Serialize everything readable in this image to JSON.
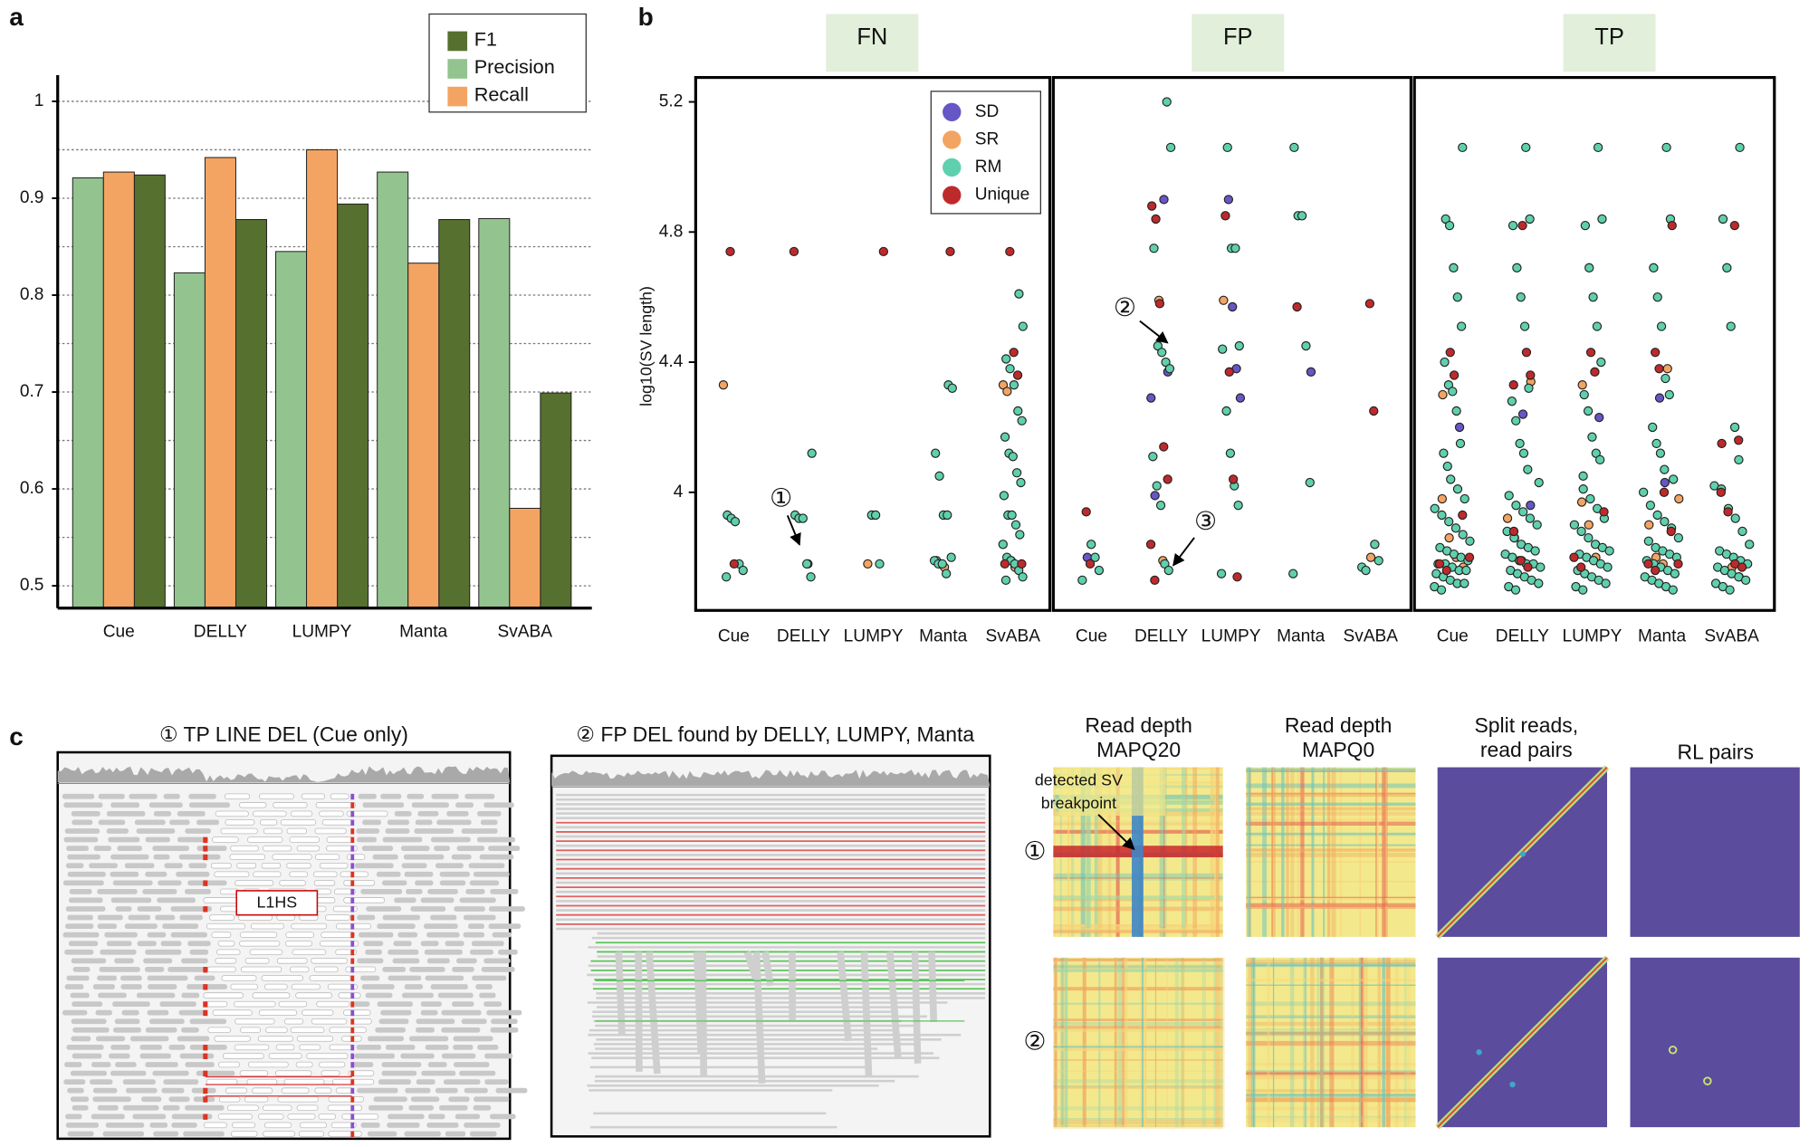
{
  "panel_labels": [
    "a",
    "b",
    "c"
  ],
  "chart_data": [
    {
      "type": "bar",
      "categories": [
        "Cue",
        "DELLY",
        "LUMPY",
        "Manta",
        "SvABA"
      ],
      "series": [
        {
          "name": "F1",
          "color": "#56702f",
          "values": [
            0.924,
            0.878,
            0.894,
            0.878,
            0.699
          ]
        },
        {
          "name": "Precision",
          "color": "#93c48f",
          "values": [
            0.921,
            0.823,
            0.845,
            0.927,
            0.879
          ]
        },
        {
          "name": "Recall",
          "color": "#f4a462",
          "values": [
            0.927,
            0.942,
            0.95,
            0.833,
            0.58
          ]
        }
      ],
      "ylim": [
        0.477,
        1.027
      ],
      "yticks": [
        0.5,
        0.6,
        0.7,
        0.8,
        0.9,
        1
      ],
      "minor_yticks": [
        0.55,
        0.65,
        0.75,
        0.85,
        0.95
      ],
      "grid": true,
      "legend": "upper right"
    },
    {
      "type": "strip",
      "y_label": "log10(SV length)",
      "categories": [
        "Cue",
        "DELLY",
        "LUMPY",
        "Manta",
        "SvABA"
      ],
      "ylim": [
        3.637,
        5.275
      ],
      "yticks": [
        4,
        4.4,
        4.8,
        5.2
      ],
      "legend": "upper right",
      "series": [
        {
          "name": "SD",
          "color": "#6656c6"
        },
        {
          "name": "SR",
          "color": "#f3a462"
        },
        {
          "name": "RM",
          "color": "#5fd0ad"
        },
        {
          "name": "Unique",
          "color": "#be2a2c"
        }
      ],
      "facets": [
        {
          "title": "FN",
          "values": [
            [
              [],
              [
                4.33
              ],
              [
                3.93,
                3.92,
                3.91,
                3.78,
                3.76,
                3.74
              ],
              [
                4.74,
                3.78
              ]
            ],
            [
              [],
              [
                3.78
              ],
              [
                4.12,
                3.93,
                3.92,
                3.92,
                3.78,
                3.74
              ],
              [
                4.74
              ]
            ],
            [
              [],
              [
                3.78
              ],
              [
                3.93,
                3.93,
                3.78
              ],
              [
                4.74
              ]
            ],
            [
              [],
              [
                3.79,
                3.78,
                3.77
              ],
              [
                4.33,
                4.32,
                4.12,
                4.05,
                3.93,
                3.93,
                3.8,
                3.79,
                3.78,
                3.78,
                3.75
              ],
              [
                4.74
              ]
            ],
            [
              [],
              [
                4.33,
                4.31,
                3.79,
                3.77
              ],
              [
                4.61,
                4.51,
                4.41,
                4.38,
                4.33,
                4.25,
                4.22,
                4.17,
                4.12,
                4.11,
                4.06,
                4.03,
                3.99,
                3.93,
                3.93,
                3.9,
                3.87,
                3.84,
                3.8,
                3.79,
                3.78,
                3.76,
                3.74,
                3.73
              ],
              [
                4.74,
                4.43,
                4.36,
                3.78,
                3.78
              ]
            ]
          ]
        },
        {
          "title": "FP",
          "values": [
            [
              [
                3.8
              ],
              [],
              [
                3.84,
                3.8,
                3.76,
                3.73
              ],
              [
                3.94,
                3.78
              ]
            ],
            [
              [
                4.9,
                4.37,
                4.29,
                3.99
              ],
              [
                4.59,
                3.79
              ],
              [
                5.2,
                5.06,
                4.75,
                4.45,
                4.43,
                4.4,
                4.38,
                4.11,
                4.02,
                3.96,
                3.78,
                3.76
              ],
              [
                4.88,
                4.84,
                4.58,
                4.14,
                4.04,
                3.84,
                3.73
              ]
            ],
            [
              [
                4.9,
                4.57,
                4.38,
                4.29
              ],
              [
                4.59
              ],
              [
                5.06,
                4.75,
                4.75,
                4.45,
                4.44,
                4.25,
                4.12,
                4.02,
                3.96,
                3.75
              ],
              [
                4.85,
                4.37,
                4.04,
                3.74
              ]
            ],
            [
              [
                4.37
              ],
              [],
              [
                5.06,
                4.85,
                4.85,
                4.45,
                4.03,
                3.75
              ],
              [
                4.57
              ]
            ],
            [
              [],
              [
                3.8
              ],
              [
                3.84,
                3.79,
                3.77,
                3.76
              ],
              [
                4.58,
                4.25
              ]
            ]
          ]
        },
        {
          "title": "TP",
          "values": [
            [
              [
                4.2
              ],
              [
                4.3,
                3.98,
                3.86,
                3.8,
                3.77
              ],
              [
                5.06,
                4.84,
                4.82,
                4.69,
                4.6,
                4.51,
                4.4,
                4.33,
                4.31,
                4.25,
                4.15,
                4.12,
                4.08,
                4.04,
                4.01,
                3.98,
                3.95,
                3.93,
                3.91,
                3.89,
                3.87,
                3.85,
                3.83,
                3.82,
                3.81,
                3.8,
                3.79,
                3.78,
                3.78,
                3.77,
                3.76,
                3.76,
                3.75,
                3.74,
                3.73,
                3.72,
                3.72,
                3.71,
                3.7
              ],
              [
                4.43,
                4.36,
                3.93,
                3.8,
                3.78,
                3.76
              ]
            ],
            [
              [
                4.24,
                3.96
              ],
              [
                4.34,
                3.92,
                3.86,
                3.79
              ],
              [
                5.06,
                4.84,
                4.82,
                4.69,
                4.6,
                4.51,
                4.32,
                4.28,
                4.22,
                4.15,
                4.12,
                4.07,
                4.03,
                3.99,
                3.96,
                3.94,
                3.92,
                3.9,
                3.88,
                3.86,
                3.84,
                3.83,
                3.82,
                3.81,
                3.8,
                3.79,
                3.78,
                3.78,
                3.77,
                3.76,
                3.75,
                3.74,
                3.73,
                3.72,
                3.71,
                3.7
              ],
              [
                4.82,
                4.43,
                4.36,
                4.33,
                3.88,
                3.79,
                3.77
              ]
            ],
            [
              [
                4.23
              ],
              [
                4.33,
                3.97,
                3.9,
                3.8
              ],
              [
                5.06,
                4.84,
                4.82,
                4.69,
                4.6,
                4.51,
                4.4,
                4.3,
                4.25,
                4.17,
                4.12,
                4.1,
                4.05,
                4.01,
                3.98,
                3.95,
                3.92,
                3.9,
                3.88,
                3.86,
                3.84,
                3.83,
                3.82,
                3.81,
                3.8,
                3.79,
                3.78,
                3.77,
                3.76,
                3.75,
                3.74,
                3.73,
                3.72,
                3.71,
                3.7
              ],
              [
                4.43,
                4.37,
                3.94,
                3.8,
                3.77
              ]
            ],
            [
              [
                4.29,
                4.03
              ],
              [
                4.38,
                3.98,
                3.9,
                3.8,
                3.78
              ],
              [
                5.06,
                4.84,
                4.69,
                4.6,
                4.51,
                4.35,
                4.3,
                4.2,
                4.15,
                4.12,
                4.07,
                4.04,
                4.0,
                3.96,
                3.93,
                3.91,
                3.89,
                3.86,
                3.85,
                3.83,
                3.82,
                3.81,
                3.8,
                3.79,
                3.78,
                3.77,
                3.76,
                3.75,
                3.74,
                3.73,
                3.72,
                3.71,
                3.7
              ],
              [
                4.82,
                4.43,
                4.38,
                4.0,
                3.88,
                3.78,
                3.78,
                3.76
              ]
            ],
            [
              [],
              [
                3.77,
                3.74
              ],
              [
                5.06,
                4.84,
                4.69,
                4.51,
                4.2,
                4.1,
                4.02,
                4.01,
                3.95,
                3.92,
                3.88,
                3.84,
                3.82,
                3.81,
                3.8,
                3.79,
                3.78,
                3.77,
                3.76,
                3.75,
                3.74,
                3.73,
                3.72,
                3.71,
                3.7
              ],
              [
                4.82,
                4.16,
                4.15,
                4.0,
                3.94,
                3.78,
                3.77
              ]
            ]
          ]
        }
      ],
      "annotations": [
        "①",
        "②",
        "③"
      ]
    }
  ],
  "panel_c": {
    "igv_titles": [
      "① TP LINE DEL (Cue only)",
      "② FP DEL found by DELLY, LUMPY, Manta"
    ],
    "igv_label": "L1HS",
    "heatmap_titles": [
      [
        "Read depth",
        "MAPQ20"
      ],
      [
        "Read depth",
        "MAPQ0"
      ],
      [
        "Split reads,",
        "read pairs"
      ],
      [
        "RL pairs"
      ]
    ],
    "row_labels": [
      "①",
      "②"
    ],
    "annotation": [
      "detected SV",
      "breakpoint"
    ]
  }
}
